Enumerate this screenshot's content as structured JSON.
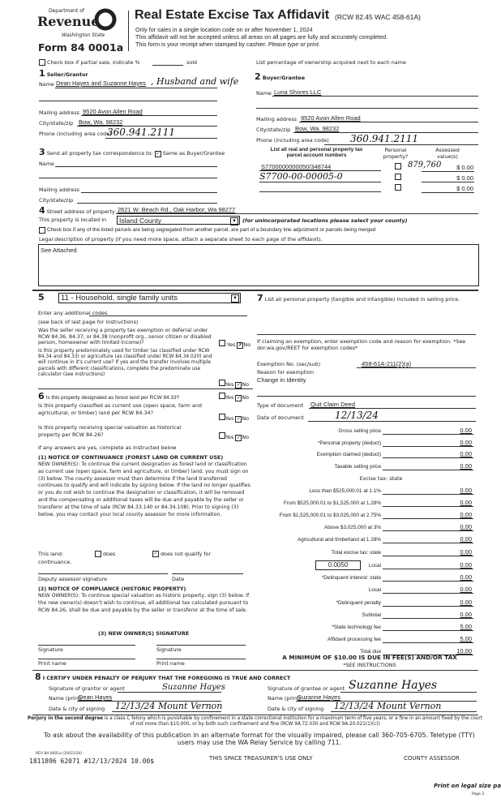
{
  "header": {
    "dept": "Department of",
    "revenue": "Revenue",
    "state": "Washington State",
    "form": "Form 84 0001a",
    "title": "Real Estate Excise Tax Affidavit",
    "rcw": "(RCW 82.45 WAC 458-61A)",
    "line1": "Only for sales in a single location code on or after November 1, 2024",
    "line2": "This affidavit will not be accepted unless all areas on all pages are fully and accurately completed.",
    "line3": "This form is your receipt when stamped by cashier.",
    "line3b": "Please type or print."
  },
  "partial": {
    "label": "Check box if partial sale, indicate %",
    "sold": "sold",
    "right": "List percentage of ownership acquired next to each name"
  },
  "seller": {
    "num": "1",
    "label": "Seller/Grantor",
    "name_label": "Name",
    "name": "Dean Hayes and Suzanne Hayes",
    "name_hand": ", Husband and wife",
    "mail_label": "Mailing address",
    "mail": "9520 Avon Allen Road",
    "city_label": "City/state/zip",
    "city": "Bow, Wa.  98232",
    "phone_label": "Phone (including area code)",
    "phone": "360.941.2111"
  },
  "buyer": {
    "num": "2",
    "label": "Buyer/Grantee",
    "name_label": "Name",
    "name": "Luna Shores LLC",
    "mail_label": "Mailing address",
    "mail": "9520 Avon Allen Road",
    "city_label": "City/state/zip",
    "city": "Bow, Wa.  98232",
    "phone_label": "Phone (including area code)",
    "phone": "360.941.2111"
  },
  "corr": {
    "num": "3",
    "label": "Send all property tax correspondence to:",
    "same": "Same as Buyer/Grantee",
    "name_label": "Name",
    "mail_label": "Mailing address",
    "city_label": "City/state/zip"
  },
  "parcels": {
    "h1": "List all real and personal property tax",
    "h1b": "parcel account numbers",
    "h2": "Personal",
    "h2b": "property?",
    "h3": "Assessed",
    "h3b": "value(s)",
    "rows": [
      {
        "num": "S7700000000050/348744",
        "hand": "879,760",
        "val": "$ 0.00"
      },
      {
        "num": "",
        "hand_num": "S7700-00-00005-0",
        "val": "$ 0.00"
      },
      {
        "num": "",
        "val": "$ 0.00"
      }
    ]
  },
  "property": {
    "num": "4",
    "addr_label": "Street address of property",
    "addr": "2621 W. Beach Rd., Oak Harbor, Wa  98277",
    "loc_label": "This property is located in",
    "county": "Island County",
    "county_note": "(for unincorporated locations please select your county)",
    "seg": "Check box if any of the listed parcels are being segregated from another parcel, are part of a boundary line adjustment or parcels being merged",
    "legal_label": "Legal description of property (if you need more space, attach a separate sheet to each page of the affidavit).",
    "legal": "See Attached"
  },
  "s5": {
    "num": "5",
    "code": "11 - Household, single family units",
    "add": "Enter any additional codes",
    "see": "(see back of last page for instructions)",
    "q1": "Was the seller receiving a property tax exemption or deferral under RCW 84.36, 84.37, or 84.38 (nonprofit org., senior citizen or disabled person, homeowner with limited income)?",
    "q2": "Is this property predominately used for timber (as classified under RCW 84.34 and 84.33) or agriculture (as classified under RCW 84.34.020) and will continue in it's current use? If yes and the transfer involves multiple parcels with different classifications, complete the predominate use calculator (see instructions)",
    "yes": "Yes",
    "no": "No"
  },
  "s6": {
    "num": "6",
    "q1": "Is this property designated as forest land per RCW 84.33?",
    "q2": "Is this property classified as current use (open space, farm and agricultural, or timber) land per RCW 84.34?",
    "q3": "Is this property receiving special valuation as historical property per RCW 84.26?",
    "ifyes": "If any answers are yes, complete as instructed below",
    "n1": "(1) NOTICE OF CONTINUANCE (FOREST LAND OR CURRENT USE)",
    "n1p": "NEW OWNER(S): To continue the current designation as forest land or classification as current use (open space, farm and agriculture, or timber) land, you must sign on (3) below. The county assessor must then determine if the land transferred continues to qualify and will indicate by signing below. If the land no longer qualifies or you do not wish to continue the designation or classification, it will be removed and the compensating or additional taxes will be due and payable by the seller or transferor at the time of sale (RCW 84.33.140 or 84.34.108). Prior to signing (3) below, you may contact your local county assessor for more information.",
    "land": "This land:",
    "does": "does",
    "doesnot": "does not qualify for",
    "cont": "continuance.",
    "deputy": "Deputy assessor signature",
    "date": "Date",
    "n2": "(2) NOTICE OF COMPLIANCE (HISTORIC PROPERTY)",
    "n2p": "NEW OWNER(S): To continue special valuation as historic property, sign (3) below. If the new owner(s) doesn't wish to continue, all additional tax calculated pursuant to RCW 84.26, shall be due and payable by the seller or transferor at the time of sale.",
    "n3": "(3) NEW OWNER(S) SIGNATURE",
    "sig": "Signature",
    "print": "Print name"
  },
  "s7": {
    "num": "7",
    "label": "List all personal property (tangible and intangible) included in selling price.",
    "ex1": "If claiming an exemption, enter exemption code and reason for exemption. *See dor.wa.gov/REET for exemption codes*",
    "exno_label": "Exemption No. (sec/sub)",
    "exno": "458-61A-211(2)(a)",
    "reason_label": "Reason for exemption",
    "reason": "Change in Identity",
    "doctype_label": "Type of document",
    "doctype": "Quit Claim Deed",
    "docdate_label": "Date of document",
    "docdate": "12/13/24"
  },
  "tax": {
    "excise_state": "Excise tax: state",
    "local_rate": "0.0050",
    "rows": [
      {
        "label": "Gross selling price",
        "val": "0.00"
      },
      {
        "label": "*Personal property (deduct)",
        "val": "0.00"
      },
      {
        "label": "Exemption claimed (deduct)",
        "val": "0.00"
      },
      {
        "label": "Taxable selling price",
        "val": "0.00"
      },
      {
        "label": "Less than $525,000.01 at 1.1%",
        "val": "0.00"
      },
      {
        "label": "From $525,000.01 to $1,525,000 at 1.28%",
        "val": "0.00"
      },
      {
        "label": "From $1,525,000.01 to $3,025,000 at 2.75%",
        "val": "0.00"
      },
      {
        "label": "Above $3,025,000 at 3%",
        "val": "0.00"
      },
      {
        "label": "Agricultural and timberland at 1.28%",
        "val": "0.00"
      },
      {
        "label": "Total excise tax: state",
        "val": "0.00"
      },
      {
        "label": "Local",
        "val": "0.00"
      },
      {
        "label": "*Delinquent interest: state",
        "val": "0.00"
      },
      {
        "label": "Local",
        "val": "0.00"
      },
      {
        "label": "*Delinquent penalty",
        "val": "0.00"
      },
      {
        "label": "Subtotal",
        "val": "0.00"
      },
      {
        "label": "*State technology fee",
        "val": "5.00"
      },
      {
        "label": "Affidavit processing fee",
        "val": "5.00"
      },
      {
        "label": "Total due",
        "val": "10.00"
      }
    ],
    "min": "A MINIMUM OF $10.00 IS DUE IN FEE(S) AND/OR TAX",
    "see": "*SEE INSTRUCTIONS"
  },
  "s8": {
    "num": "8",
    "cert": "I CERTIFY UNDER PENALTY OF PERJURY THAT THE FOREGOING IS TRUE AND CORRECT",
    "g_sig": "Signature of grantor or agent",
    "g_sig_hand": "Suzanne Hayes",
    "g_name_label": "Name (print)",
    "g_name": "Dean Hayes",
    "g_date_label": "Date & city of signing",
    "g_date": "12/13/24  Mount Vernon",
    "e_sig": "Signature of grantee or agent",
    "e_sig_hand": "Suzanne Hayes",
    "e_name_label": "Name (print)",
    "e_name": "Suzanne Hayes",
    "e_date_label": "Date & city of signing",
    "e_date": "12/13/24  Mount Vernon"
  },
  "footer": {
    "perjury_b": "Perjury in the second degree",
    "perjury": " is a class C felony which is punishable by confinement in a state correctional institution for a maximum term of five years, or a fine in an amount fixed by the court of not more than $10,000, or by both such confinement and fine (RCW 9A.72.030 and RCW 9A.20.021(1)(c))",
    "tty": "To ask about the availability of this publication in an alternate format for the visually impaired, please call 360-705-6705. Teletype (TTY) users may use the WA Relay Service by calling 711.",
    "rev": "REV 84 0001a (10/15/24)",
    "stamp": "1811896 62071 #12/13/2024 10.00$",
    "treasurer": "THIS SPACE TREASURER'S USE ONLY",
    "assessor": "COUNTY ASSESSOR",
    "legal": "Print on legal size pa",
    "page": "Page 2"
  }
}
